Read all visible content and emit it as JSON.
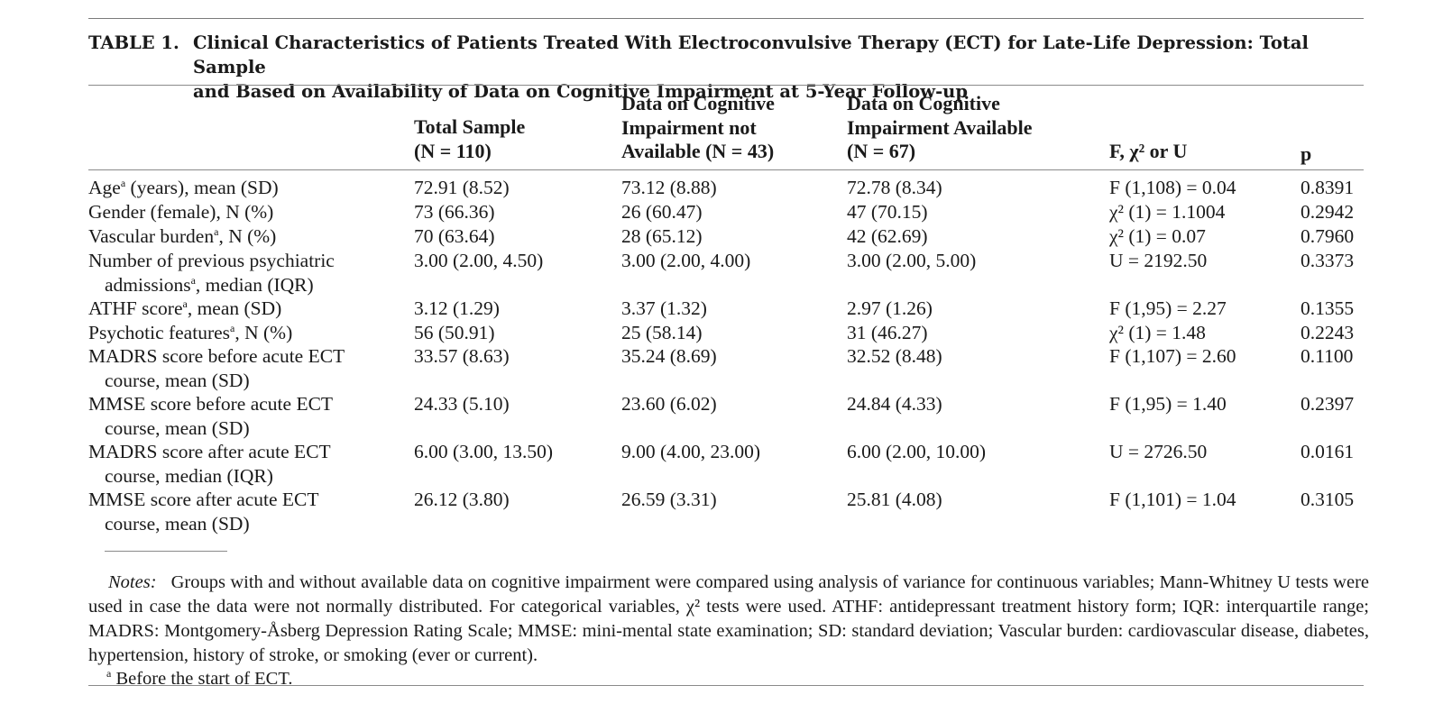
{
  "table": {
    "label": "TABLE 1.",
    "caption_line1": "Clinical Characteristics of Patients Treated With Electroconvulsive Therapy (ECT) for Late-Life Depression: Total Sample",
    "caption_line2": "and Based on Availability of Data on Cognitive Impairment at 5-Year Follow-up",
    "headers": {
      "total": [
        "Total Sample",
        "(N = 110)"
      ],
      "not_available": [
        "Data on Cognitive",
        "Impairment not",
        "Available (N = 43)"
      ],
      "available": [
        "Data on Cognitive",
        "Impairment Available",
        "(N = 67)"
      ],
      "stat": "F, χ² or U",
      "p": "p"
    },
    "rows": [
      {
        "label1": "Age",
        "sup": "a",
        "label1b": " (years), mean (SD)",
        "label2": "",
        "total": "72.91 (8.52)",
        "not_available": "73.12 (8.88)",
        "available": "72.78 (8.34)",
        "stat": "F (1,108) = 0.04",
        "p": "0.8391"
      },
      {
        "label1": "Gender (female), N (%)",
        "sup": "",
        "label1b": "",
        "label2": "",
        "total": "73 (66.36)",
        "not_available": "26 (60.47)",
        "available": "47 (70.15)",
        "stat": "χ² (1) = 1.1004",
        "p": "0.2942"
      },
      {
        "label1": "Vascular burden",
        "sup": "a",
        "label1b": ", N (%)",
        "label2": "",
        "total": "70 (63.64)",
        "not_available": "28 (65.12)",
        "available": "42 (62.69)",
        "stat": "χ² (1) = 0.07",
        "p": "0.7960"
      },
      {
        "label1": "Number of previous psychiatric",
        "sup": "",
        "label1b": "",
        "label2": "admissions",
        "label2sup": "a",
        "label2b": ", median (IQR)",
        "total": "3.00 (2.00, 4.50)",
        "not_available": "3.00 (2.00, 4.00)",
        "available": "3.00 (2.00, 5.00)",
        "stat": "U = 2192.50",
        "p": "0.3373"
      },
      {
        "label1": "ATHF score",
        "sup": "a",
        "label1b": ", mean (SD)",
        "label2": "",
        "total": "3.12 (1.29)",
        "not_available": "3.37 (1.32)",
        "available": "2.97 (1.26)",
        "stat": "F (1,95) = 2.27",
        "p": "0.1355"
      },
      {
        "label1": "Psychotic features",
        "sup": "a",
        "label1b": ", N (%)",
        "label2": "",
        "total": "56 (50.91)",
        "not_available": "25 (58.14)",
        "available": "31 (46.27)",
        "stat": "χ² (1) = 1.48",
        "p": "0.2243"
      },
      {
        "label1": "MADRS score before acute ECT",
        "sup": "",
        "label1b": "",
        "label2": "course, mean (SD)",
        "total": "33.57 (8.63)",
        "not_available": "35.24 (8.69)",
        "available": "32.52 (8.48)",
        "stat": "F (1,107) = 2.60",
        "p": "0.1100"
      },
      {
        "label1": "MMSE score before acute ECT",
        "sup": "",
        "label1b": "",
        "label2": "course, mean (SD)",
        "total": "24.33 (5.10)",
        "not_available": "23.60 (6.02)",
        "available": "24.84 (4.33)",
        "stat": "F (1,95) = 1.40",
        "p": "0.2397"
      },
      {
        "label1": "MADRS score after acute ECT",
        "sup": "",
        "label1b": "",
        "label2": "course, median (IQR)",
        "total": "6.00 (3.00, 13.50)",
        "not_available": "9.00 (4.00, 23.00)",
        "available": "6.00 (2.00, 10.00)",
        "stat": "U = 2726.50",
        "p": "0.0161"
      },
      {
        "label1": "MMSE score after acute ECT",
        "sup": "",
        "label1b": "",
        "label2": "course, mean (SD)",
        "total": "26.12 (3.80)",
        "not_available": "26.59 (3.31)",
        "available": "25.81 (4.08)",
        "stat": "F (1,101) = 1.04",
        "p": "0.3105"
      }
    ],
    "notes_lead": "Notes:",
    "notes_text": "Groups with and without available data on cognitive impairment were compared using analysis of variance for continuous variables; Mann-Whitney U tests were used in case the data were not normally distributed. For categorical variables, χ² tests were used. ATHF: antidepressant treatment history form; IQR: interquartile range; MADRS: Montgomery-Åsberg Depression Rating Scale; MMSE: mini-mental state examination; SD: standard deviation; Vascular burden: cardiovascular disease, diabetes, hypertension, history of stroke, or smoking (ever or current).",
    "footnote_mark": "a",
    "footnote_text": "Before the start of ECT."
  }
}
